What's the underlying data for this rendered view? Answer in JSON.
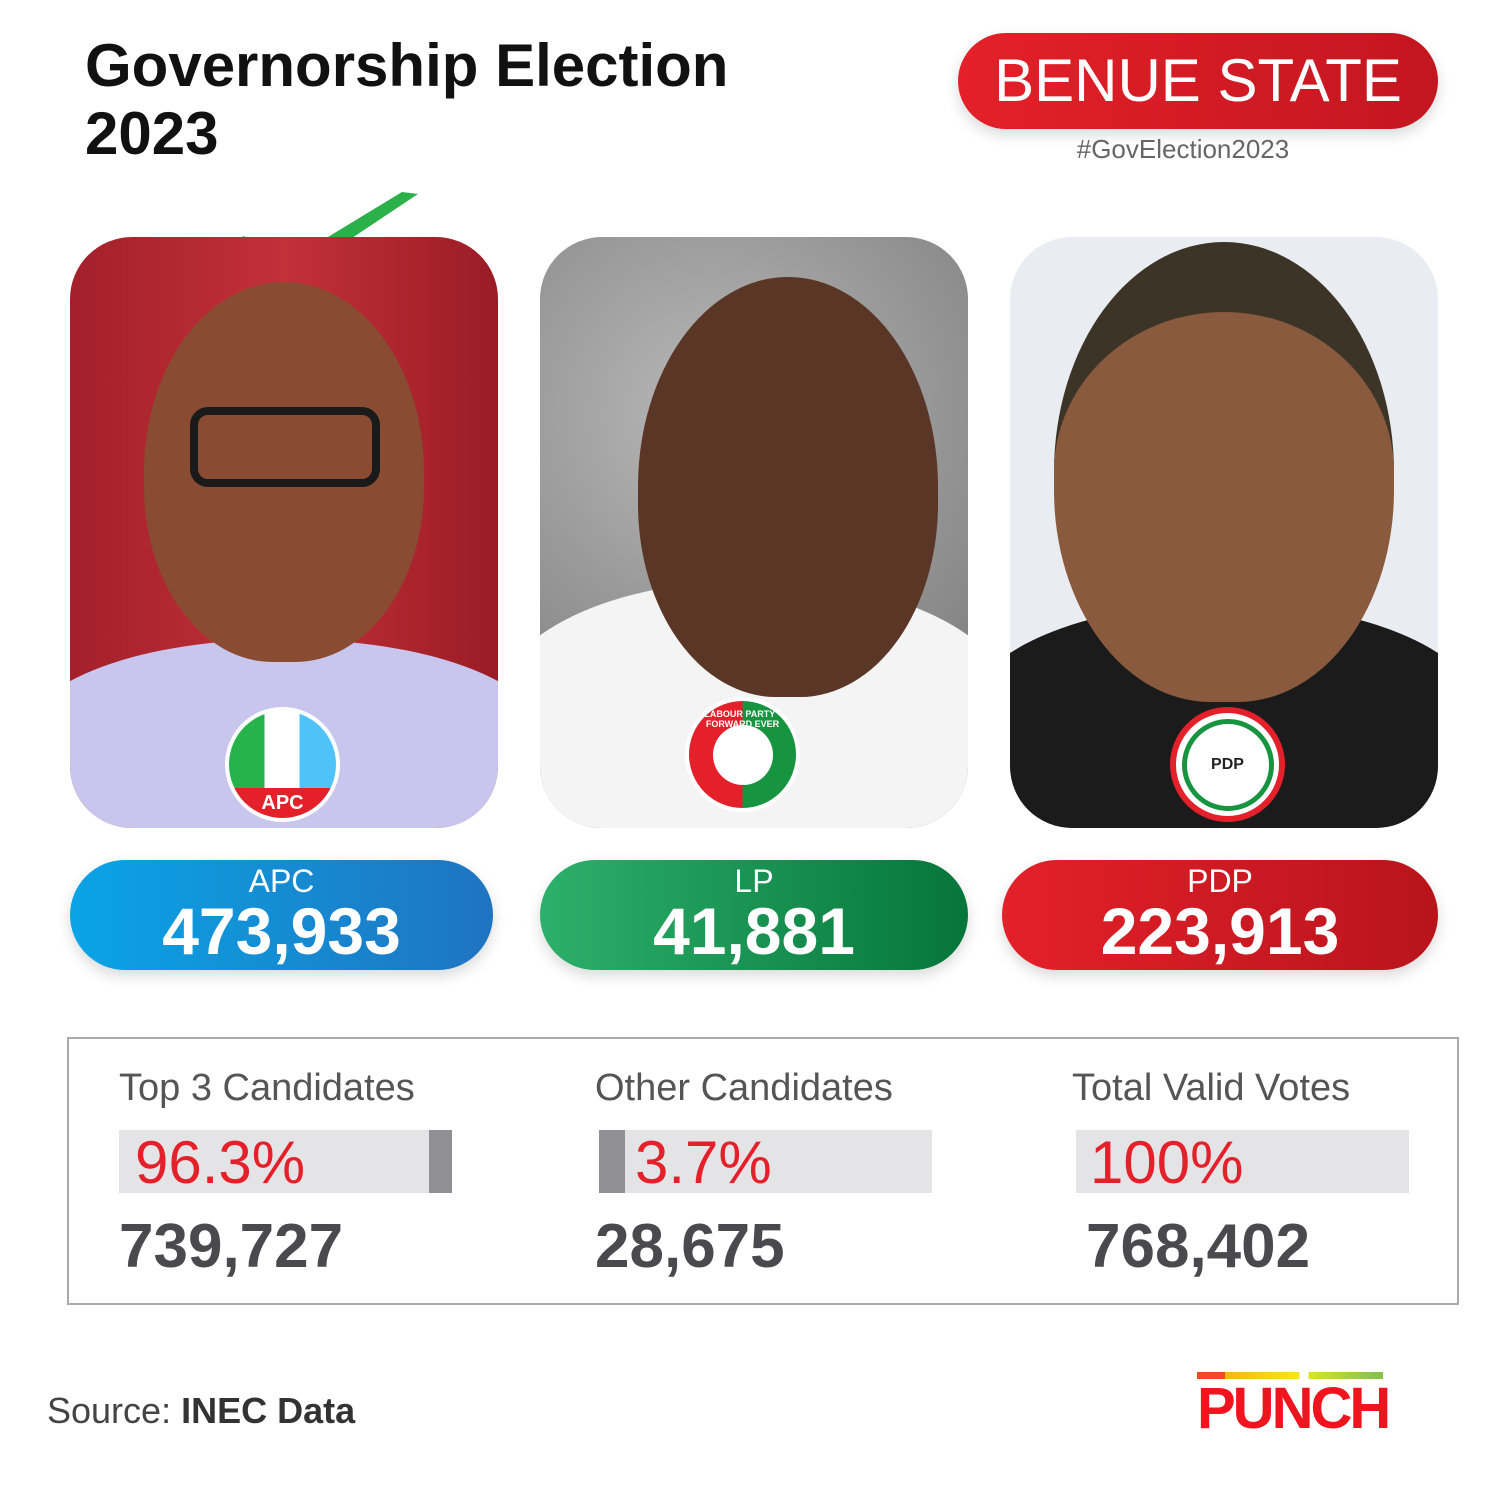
{
  "header": {
    "title": "Governorship Election 2023",
    "state": "BENUE STATE",
    "hashtag": "#GovElection2023"
  },
  "candidates": [
    {
      "party": "APC",
      "votes": "473,933",
      "winner": true,
      "logo_text": "APC",
      "color_start": "#0aa4e6",
      "color_end": "#1f74c0"
    },
    {
      "party": "LP",
      "votes": "41,881",
      "winner": false,
      "logo_text": "LABOUR PARTY · FORWARD EVER",
      "color_start": "#2cb06a",
      "color_end": "#06753a"
    },
    {
      "party": "PDP",
      "votes": "223,913",
      "winner": false,
      "logo_text": "PDP",
      "color_start": "#e4202a",
      "color_end": "#b8141c"
    }
  ],
  "stats": [
    {
      "label": "Top 3 Candidates",
      "percent": "96.3%",
      "value": "739,727",
      "bar_percent": 96.3
    },
    {
      "label": "Other Candidates",
      "percent": "3.7%",
      "value": "28,675",
      "bar_percent": 3.7
    },
    {
      "label": "Total Valid Votes",
      "percent": "100%",
      "value": "768,402",
      "bar_percent": 100
    }
  ],
  "footer": {
    "source_label": "Source:",
    "source_value": "INEC Data",
    "brand": "PUNCH"
  }
}
